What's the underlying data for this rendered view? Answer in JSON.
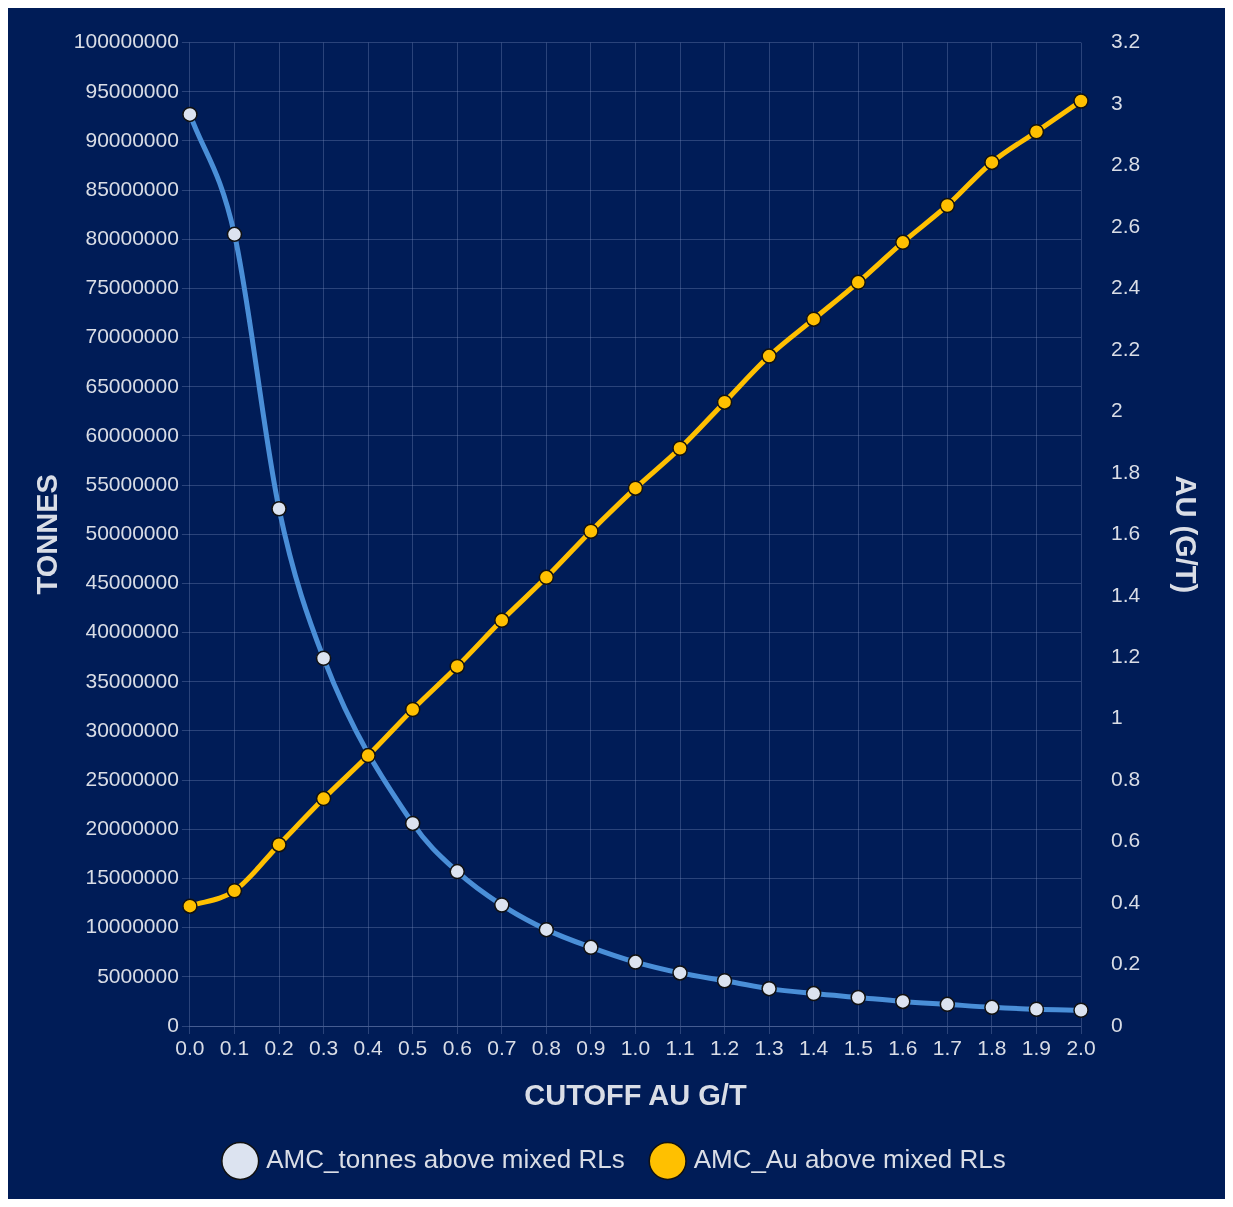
{
  "chart_data": {
    "type": "line",
    "xlabel": "CUTOFF AU G/T",
    "ylabel": "TONNES",
    "y2label": "AU (G/T)",
    "categories": [
      "0.0",
      "0.1",
      "0.2",
      "0.3",
      "0.4",
      "0.5",
      "0.6",
      "0.7",
      "0.8",
      "0.9",
      "1.0",
      "1.1",
      "1.2",
      "1.3",
      "1.4",
      "1.5",
      "1.6",
      "1.7",
      "1.8",
      "1.9",
      "2.0"
    ],
    "series": [
      {
        "name": "AMC_tonnes above mixed RLs",
        "color": "#4a8fd8",
        "values": [
          92700000,
          80500000,
          52600000,
          37400000,
          null,
          20600000,
          15700000,
          12300000,
          9800000,
          8000000,
          6500000,
          5400000,
          4600000,
          3800000,
          3300000,
          2900000,
          2500000,
          2200000,
          1900000,
          1700000,
          1600000
        ]
      },
      {
        "name": "AMC_Au above mixed RLs",
        "color": "#ffc000",
        "axis": "y2",
        "values": [
          0.39,
          0.44,
          0.59,
          0.74,
          0.88,
          1.03,
          1.17,
          1.32,
          1.46,
          1.61,
          1.75,
          1.88,
          2.03,
          2.18,
          2.3,
          2.42,
          2.55,
          2.67,
          2.81,
          2.91,
          3.01
        ]
      }
    ],
    "ylim": [
      0,
      100000000
    ],
    "yticks": [
      0,
      5000000,
      10000000,
      15000000,
      20000000,
      25000000,
      30000000,
      35000000,
      40000000,
      45000000,
      50000000,
      55000000,
      60000000,
      65000000,
      70000000,
      75000000,
      80000000,
      85000000,
      90000000,
      95000000,
      100000000
    ],
    "y2lim": [
      0,
      3.2
    ],
    "y2ticks": [
      0,
      0.2,
      0.4,
      0.6,
      0.8,
      1,
      1.2,
      1.4,
      1.6,
      1.8,
      2,
      2.2,
      2.4,
      2.6,
      2.8,
      3,
      3.2
    ],
    "grid": true,
    "legend": "bottom",
    "marker": "circle",
    "line_style": "solid"
  }
}
